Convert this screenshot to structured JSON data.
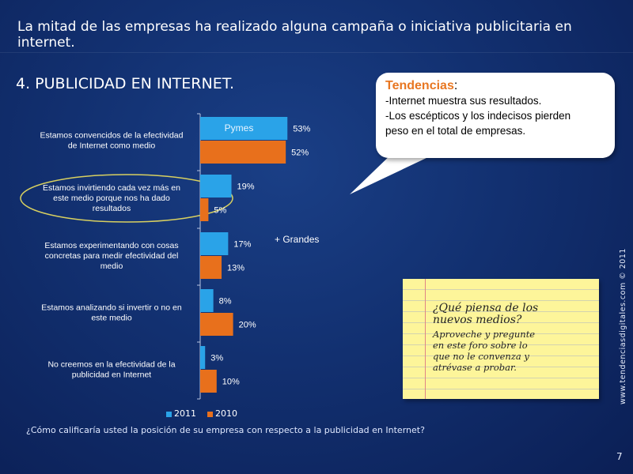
{
  "header": "La mitad de las empresas ha realizado alguna campaña o iniciativa publicitaria en internet.",
  "section_title": "4. PUBLICIDAD EN INTERNET.",
  "callout": {
    "title": "Tendencias",
    "colon": ":",
    "line1": "-Internet muestra sus resultados.",
    "line2": "-Los escépticos y los indecisos pierden",
    "line3": "peso en el total de empresas."
  },
  "note": {
    "title1": "¿Qué piensa de los",
    "title2": "nuevos medios?",
    "body1": "Aproveche y pregunte",
    "body2": "en este foro sobre lo",
    "body3": "que no le convenza y",
    "body4": "atrévase a probar."
  },
  "vertical_credit": "www.tendenciasdigitales.com © 2011",
  "page_number": "7",
  "question": "¿Cómo calificaría usted la posición de su empresa con respecto a la publicidad en Internet?",
  "chart_annotations": {
    "pymes": "Pymes",
    "grandes": "+ Grandes"
  },
  "chart_data": {
    "type": "bar",
    "orientation": "horizontal",
    "categories": [
      "Estamos convencidos de la efectividad de Internet como medio",
      "Estamos invirtiendo cada vez más en este medio porque nos ha dado resultados",
      "Estamos experimentando con cosas concretas para medir efectividad del medio",
      "Estamos analizando si invertir o no en este medio",
      "No creemos en la efectividad de la publicidad en Internet"
    ],
    "category_lines": [
      [
        "Estamos convencidos de la efectividad",
        "de Internet como medio"
      ],
      [
        "Estamos invirtiendo cada vez más en",
        "este medio porque nos ha dado",
        "resultados"
      ],
      [
        "Estamos experimentando con cosas",
        "concretas para medir efectividad del",
        "medio"
      ],
      [
        "Estamos analizando si invertir o no en",
        "este medio"
      ],
      [
        "No creemos en la efectividad de la",
        "publicidad en Internet"
      ]
    ],
    "series": [
      {
        "name": "2011",
        "values": [
          53,
          19,
          17,
          8,
          3
        ],
        "labels": [
          "53%",
          "19%",
          "17%",
          "8%",
          "3%"
        ],
        "color": "#2aa3e8"
      },
      {
        "name": "2010",
        "values": [
          52,
          5,
          13,
          20,
          10
        ],
        "labels": [
          "52%",
          "5%",
          "13%",
          "20%",
          "10%"
        ],
        "color": "#e8701c"
      }
    ],
    "xlim": [
      0,
      60
    ],
    "legend_position": "bottom"
  }
}
